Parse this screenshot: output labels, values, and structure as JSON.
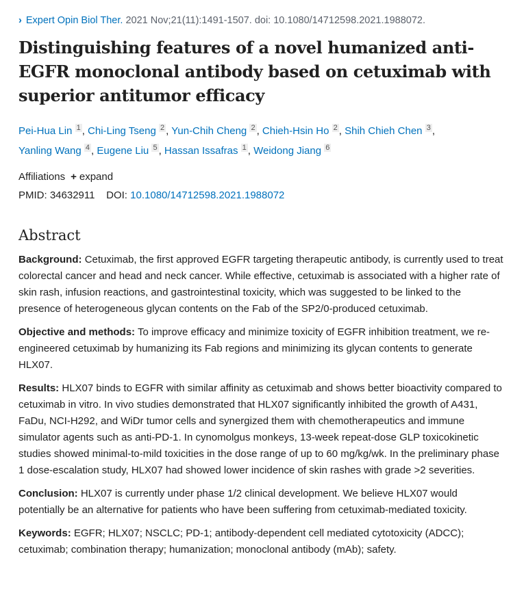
{
  "journal": {
    "name": "Expert Opin Biol Ther.",
    "citation": "2021 Nov;21(11):1491-1507. doi: 10.1080/14712598.2021.1988072."
  },
  "title": "Distinguishing features of a novel humanized anti-EGFR monoclonal antibody based on cetuximab with superior antitumor efficacy",
  "authors": [
    {
      "name": "Pei-Hua Lin",
      "aff": "1"
    },
    {
      "name": "Chi-Ling Tseng",
      "aff": "2"
    },
    {
      "name": "Yun-Chih Cheng",
      "aff": "2"
    },
    {
      "name": "Chieh-Hsin Ho",
      "aff": "2"
    },
    {
      "name": "Shih Chieh Chen",
      "aff": "3"
    },
    {
      "name": "Yanling Wang",
      "aff": "4"
    },
    {
      "name": "Eugene Liu",
      "aff": "5"
    },
    {
      "name": "Hassan Issafras",
      "aff": "1"
    },
    {
      "name": "Weidong Jiang",
      "aff": "6"
    }
  ],
  "affiliations": {
    "label": "Affiliations",
    "expand": "expand"
  },
  "ids": {
    "pmid_label": "PMID:",
    "pmid": "34632911",
    "doi_label": "DOI:",
    "doi": "10.1080/14712598.2021.1988072"
  },
  "abstract": {
    "heading": "Abstract",
    "sections": [
      {
        "label": "Background:",
        "text": "Cetuximab, the first approved EGFR targeting therapeutic antibody, is currently used to treat colorectal cancer and head and neck cancer. While effective, cetuximab is associated with a higher rate of skin rash, infusion reactions, and gastrointestinal toxicity, which was suggested to be linked to the presence of heterogeneous glycan contents on the Fab of the SP2/0-produced cetuximab."
      },
      {
        "label": "Objective and methods:",
        "text": "To improve efficacy and minimize toxicity of EGFR inhibition treatment, we re-engineered cetuximab by humanizing its Fab regions and minimizing its glycan contents to generate HLX07."
      },
      {
        "label": "Results:",
        "text": "HLX07 binds to EGFR with similar affinity as cetuximab and shows better bioactivity compared to cetuximab in vitro. In vivo studies demonstrated that HLX07 significantly inhibited the growth of A431, FaDu, NCI-H292, and WiDr tumor cells and synergized them with chemotherapeutics and immune simulator agents such as anti-PD-1. In cynomolgus monkeys, 13-week repeat-dose GLP toxicokinetic studies showed minimal-to-mild toxicities in the dose range of up to 60 mg/kg/wk. In the preliminary phase 1 dose-escalation study, HLX07 had showed lower incidence of skin rashes with grade >2 severities."
      },
      {
        "label": "Conclusion:",
        "text": "HLX07 is currently under phase 1/2 clinical development. We believe HLX07 would potentially be an alternative for patients who have been suffering from cetuximab-mediated toxicity."
      }
    ]
  },
  "keywords": {
    "label": "Keywords:",
    "text": "EGFR; HLX07; NSCLC; PD-1; antibody-dependent cell mediated cytotoxicity (ADCC); cetuximab; combination therapy; humanization; monoclonal antibody (mAb); safety."
  }
}
